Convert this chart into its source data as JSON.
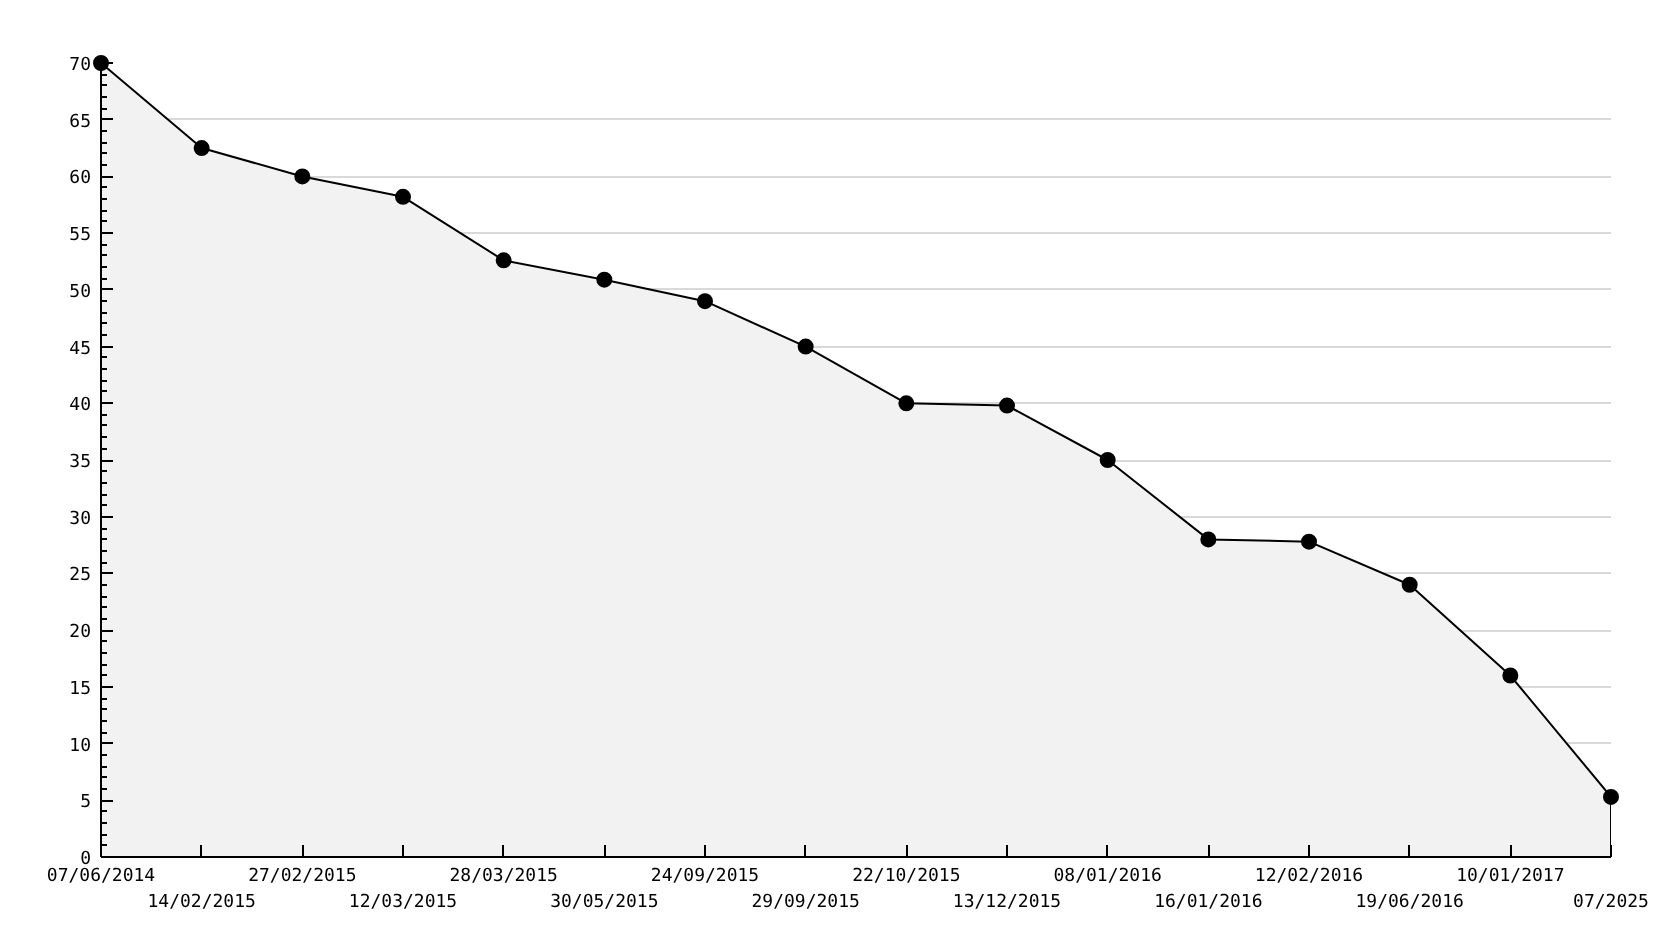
{
  "chart_data": {
    "type": "area",
    "categories": [
      "07/06/2014",
      "14/02/2015",
      "27/02/2015",
      "12/03/2015",
      "28/03/2015",
      "30/05/2015",
      "24/09/2015",
      "29/09/2015",
      "22/10/2015",
      "13/12/2015",
      "08/01/2016",
      "16/01/2016",
      "12/02/2016",
      "19/06/2016",
      "10/01/2017",
      "07/2025"
    ],
    "series": [
      {
        "color": "#000000",
        "values": [
          70,
          62.5,
          60,
          58.2,
          52.6,
          50.9,
          49.0,
          45,
          40.0,
          39.8,
          35.0,
          28.0,
          27.8,
          24.0,
          16,
          5.3
        ]
      }
    ],
    "ylim": [
      0,
      70
    ],
    "yticks": [
      0,
      5,
      10,
      15,
      20,
      25,
      30,
      35,
      40,
      45,
      50,
      55,
      60,
      65,
      70
    ],
    "grid": "y",
    "marker": "circle",
    "line_style": "solid"
  }
}
